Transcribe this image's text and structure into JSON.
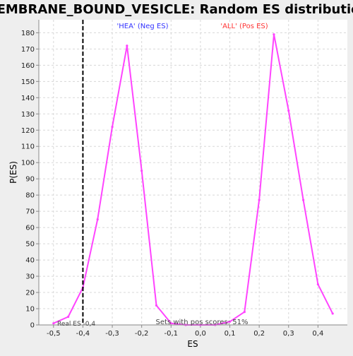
{
  "chart_data": {
    "type": "line",
    "title": "MEMBRANE_BOUND_VESICLE: Random ES distribution",
    "xlabel": "ES",
    "ylabel": "P(ES)",
    "xlim": [
      -0.55,
      0.5
    ],
    "ylim": [
      0,
      188
    ],
    "x_ticks": [
      -0.5,
      -0.4,
      -0.3,
      -0.2,
      -0.1,
      0.0,
      0.1,
      0.2,
      0.3,
      0.4
    ],
    "x_tick_labels": [
      "-0,5",
      "-0,4",
      "-0,3",
      "-0,2",
      "-0,1",
      "0,0",
      "0,1",
      "0,2",
      "0,3",
      "0,4"
    ],
    "y_ticks": [
      0,
      10,
      20,
      30,
      40,
      50,
      60,
      70,
      80,
      90,
      100,
      110,
      120,
      130,
      140,
      150,
      160,
      170,
      180
    ],
    "grid": true,
    "series": [
      {
        "color": "#ff44ff",
        "x": [
          -0.5,
          -0.45,
          -0.4,
          -0.35,
          -0.3,
          -0.25,
          -0.2,
          -0.15,
          -0.1,
          -0.05,
          0.0,
          0.05,
          0.1,
          0.15,
          0.2,
          0.25,
          0.3,
          0.35,
          0.4,
          0.45
        ],
        "y": [
          1,
          5,
          23,
          65,
          122,
          172,
          95,
          12,
          1,
          0,
          0,
          0,
          2,
          8,
          77,
          179,
          132,
          77,
          25,
          7
        ]
      }
    ],
    "real_es": {
      "x": -0.4,
      "label": "Real ES -0,4",
      "color": "#000000"
    },
    "annotations": {
      "neg_label": "'HEA' (Neg ES)",
      "neg_color": "#3333ff",
      "pos_label": "'ALL' (Pos ES)",
      "pos_color": "#ff3333",
      "pos_scores": "Sets with pos scores: 51%"
    },
    "colors": {
      "background": "#eeeeee",
      "plot_background": "#ffffff",
      "grid": "#d8d8d8"
    }
  }
}
